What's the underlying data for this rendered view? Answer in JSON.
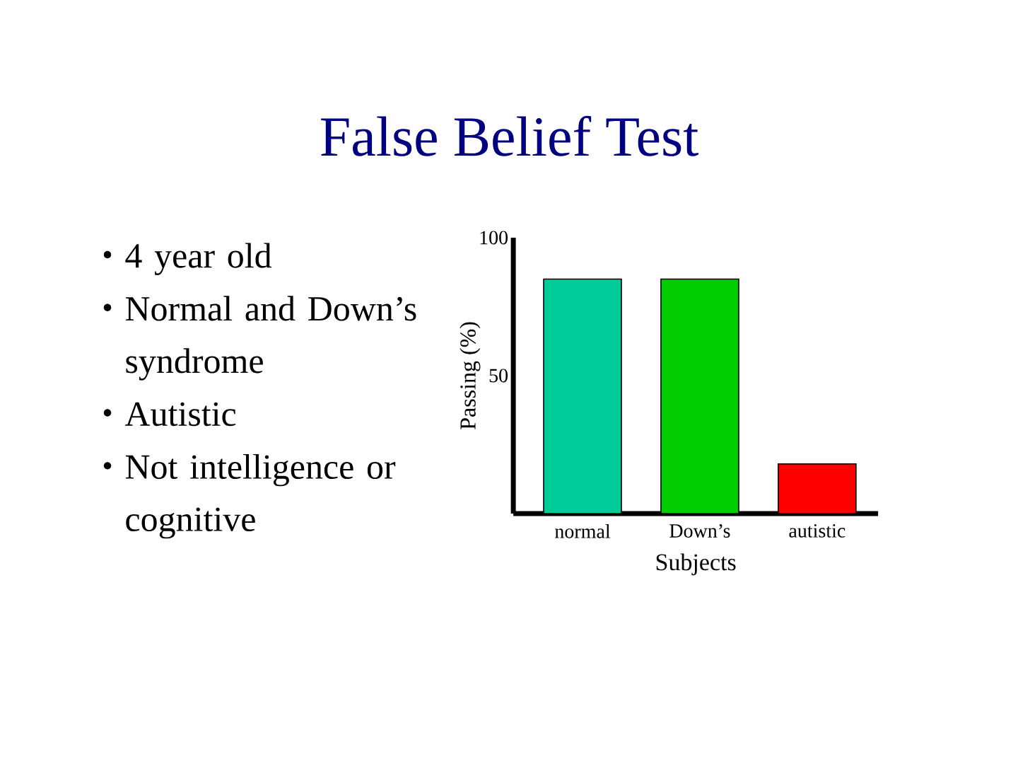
{
  "chart_data": {
    "type": "bar",
    "title": "False Belief Test",
    "annotations": [
      "4 year old",
      "Normal and Down’s syndrome",
      "Autistic",
      "Not intelligence or cognitive"
    ],
    "categories": [
      "normal",
      "Down’s",
      "autistic"
    ],
    "values": [
      85,
      85,
      18
    ],
    "colors": [
      "#00cc99",
      "#00cc00",
      "#ff0000"
    ],
    "ylabel": "Passing (%)",
    "xlabel": "Subjects",
    "ylim": [
      0,
      100
    ],
    "yticks": [
      50,
      100
    ]
  }
}
